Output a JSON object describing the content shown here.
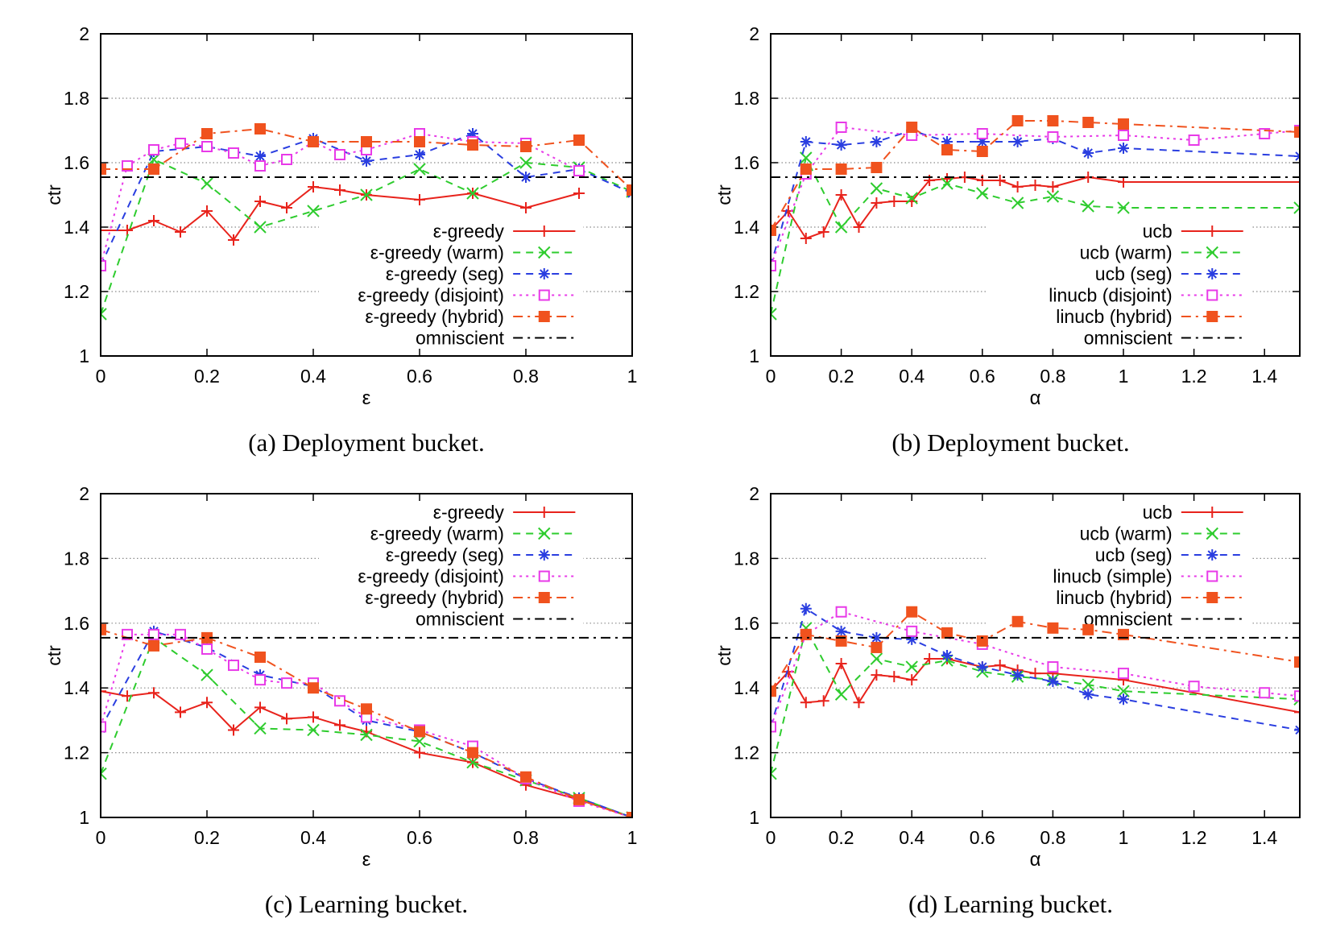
{
  "chart_data": [
    {
      "type": "line",
      "caption": "(a) Deployment bucket.",
      "xlabel": "ε",
      "ylabel": "ctr",
      "xlim": [
        0,
        1
      ],
      "ylim": [
        1,
        2
      ],
      "xticks": [
        "0",
        "0.2",
        "0.4",
        "0.6",
        "0.8",
        "1"
      ],
      "yticks": [
        "1",
        "1.2",
        "1.4",
        "1.6",
        "1.8",
        "2"
      ],
      "grid": "horizontal dotted",
      "legend_position": "bottom-right",
      "series": [
        {
          "name": "ε-greedy",
          "color": "#e8231c",
          "dash": "solid",
          "marker": "plus",
          "x": [
            0,
            0.05,
            0.1,
            0.15,
            0.2,
            0.25,
            0.3,
            0.35,
            0.4,
            0.45,
            0.5,
            0.6,
            0.7,
            0.8,
            0.9
          ],
          "y": [
            1.39,
            1.39,
            1.42,
            1.385,
            1.45,
            1.36,
            1.48,
            1.46,
            1.525,
            1.515,
            1.5,
            1.485,
            1.505,
            1.46,
            1.505
          ]
        },
        {
          "name": "ε-greedy (warm)",
          "color": "#2ecc2e",
          "dash": "dashed",
          "marker": "x",
          "x": [
            0,
            0.1,
            0.2,
            0.3,
            0.4,
            0.5,
            0.6,
            0.7,
            0.8,
            0.9,
            1
          ],
          "y": [
            1.13,
            1.61,
            1.535,
            1.4,
            1.45,
            1.5,
            1.58,
            1.505,
            1.6,
            1.585,
            1.51
          ]
        },
        {
          "name": "ε-greedy (seg)",
          "color": "#2a3ee0",
          "dash": "dashed",
          "marker": "asterisk",
          "x": [
            0,
            0.1,
            0.2,
            0.3,
            0.4,
            0.5,
            0.6,
            0.7,
            0.8,
            0.9,
            1
          ],
          "y": [
            1.28,
            1.635,
            1.65,
            1.62,
            1.675,
            1.605,
            1.625,
            1.69,
            1.555,
            1.58,
            1.505
          ]
        },
        {
          "name": "ε-greedy (disjoint)",
          "color": "#e83ae8",
          "dash": "dotted",
          "marker": "square-open",
          "x": [
            0,
            0.05,
            0.1,
            0.15,
            0.2,
            0.25,
            0.3,
            0.35,
            0.4,
            0.45,
            0.5,
            0.6,
            0.7,
            0.8,
            0.9
          ],
          "y": [
            1.28,
            1.59,
            1.64,
            1.66,
            1.65,
            1.63,
            1.59,
            1.61,
            1.665,
            1.625,
            1.64,
            1.69,
            1.665,
            1.66,
            1.575
          ]
        },
        {
          "name": "ε-greedy (hybrid)",
          "color": "#f0521e",
          "dash": "dashdot",
          "marker": "square-filled",
          "x": [
            0,
            0.1,
            0.2,
            0.3,
            0.4,
            0.5,
            0.6,
            0.7,
            0.8,
            0.9,
            1
          ],
          "y": [
            1.58,
            1.58,
            1.69,
            1.705,
            1.665,
            1.665,
            1.665,
            1.655,
            1.65,
            1.67,
            1.515
          ]
        },
        {
          "name": "omniscient",
          "color": "#000000",
          "dash": "dashdot",
          "marker": "none",
          "x": [
            0,
            1
          ],
          "y": [
            1.555,
            1.555
          ]
        }
      ]
    },
    {
      "type": "line",
      "caption": "(b) Deployment bucket.",
      "xlabel": "α",
      "ylabel": "ctr",
      "xlim": [
        0,
        1.5
      ],
      "ylim": [
        1,
        2
      ],
      "xticks": [
        "0",
        "0.2",
        "0.4",
        "0.6",
        "0.8",
        "1",
        "1.2",
        "1.4"
      ],
      "yticks": [
        "1",
        "1.2",
        "1.4",
        "1.6",
        "1.8",
        "2"
      ],
      "grid": "horizontal dotted",
      "legend_position": "bottom-right",
      "series": [
        {
          "name": "ucb",
          "color": "#e8231c",
          "dash": "solid",
          "marker": "plus",
          "x": [
            0,
            0.05,
            0.1,
            0.15,
            0.2,
            0.25,
            0.3,
            0.35,
            0.4,
            0.45,
            0.5,
            0.55,
            0.6,
            0.65,
            0.7,
            0.75,
            0.8,
            0.9,
            1,
            1.5
          ],
          "y": [
            1.39,
            1.45,
            1.365,
            1.385,
            1.5,
            1.4,
            1.475,
            1.48,
            1.48,
            1.545,
            1.55,
            1.555,
            1.545,
            1.545,
            1.525,
            1.53,
            1.525,
            1.555,
            1.54,
            1.54
          ]
        },
        {
          "name": "ucb (warm)",
          "color": "#2ecc2e",
          "dash": "dashed",
          "marker": "x",
          "x": [
            0,
            0.1,
            0.2,
            0.3,
            0.4,
            0.5,
            0.6,
            0.7,
            0.8,
            0.9,
            1,
            1.5
          ],
          "y": [
            1.13,
            1.615,
            1.4,
            1.52,
            1.49,
            1.535,
            1.505,
            1.475,
            1.495,
            1.465,
            1.46,
            1.46
          ]
        },
        {
          "name": "ucb (seg)",
          "color": "#2a3ee0",
          "dash": "dashed",
          "marker": "asterisk",
          "x": [
            0,
            0.1,
            0.2,
            0.3,
            0.4,
            0.5,
            0.6,
            0.7,
            0.8,
            0.9,
            1,
            1.5
          ],
          "y": [
            1.28,
            1.665,
            1.655,
            1.665,
            1.7,
            1.665,
            1.665,
            1.665,
            1.675,
            1.63,
            1.645,
            1.62
          ]
        },
        {
          "name": "linucb (disjoint)",
          "color": "#e83ae8",
          "dash": "dotted",
          "marker": "square-open",
          "x": [
            0,
            0.1,
            0.2,
            0.4,
            0.6,
            0.8,
            1,
            1.2,
            1.4,
            1.5
          ],
          "y": [
            1.28,
            1.565,
            1.71,
            1.685,
            1.69,
            1.68,
            1.685,
            1.67,
            1.69,
            1.7
          ]
        },
        {
          "name": "linucb (hybrid)",
          "color": "#f0521e",
          "dash": "dashdot",
          "marker": "square-filled",
          "x": [
            0,
            0.1,
            0.2,
            0.3,
            0.4,
            0.5,
            0.6,
            0.7,
            0.8,
            0.9,
            1,
            1.5
          ],
          "y": [
            1.39,
            1.58,
            1.58,
            1.585,
            1.71,
            1.64,
            1.635,
            1.73,
            1.73,
            1.725,
            1.72,
            1.695
          ]
        },
        {
          "name": "omniscient",
          "color": "#000000",
          "dash": "dashdot",
          "marker": "none",
          "x": [
            0,
            1.5
          ],
          "y": [
            1.555,
            1.555
          ]
        }
      ]
    },
    {
      "type": "line",
      "caption": "(c) Learning bucket.",
      "xlabel": "ε",
      "ylabel": "ctr",
      "xlim": [
        0,
        1
      ],
      "ylim": [
        1,
        2
      ],
      "xticks": [
        "0",
        "0.2",
        "0.4",
        "0.6",
        "0.8",
        "1"
      ],
      "yticks": [
        "1",
        "1.2",
        "1.4",
        "1.6",
        "1.8",
        "2"
      ],
      "grid": "horizontal dotted",
      "legend_position": "top-right",
      "series": [
        {
          "name": "ε-greedy",
          "color": "#e8231c",
          "dash": "solid",
          "marker": "plus",
          "x": [
            0,
            0.05,
            0.1,
            0.15,
            0.2,
            0.25,
            0.3,
            0.35,
            0.4,
            0.45,
            0.5,
            0.6,
            0.7,
            0.8,
            0.9,
            1
          ],
          "y": [
            1.39,
            1.375,
            1.385,
            1.325,
            1.355,
            1.27,
            1.34,
            1.305,
            1.31,
            1.285,
            1.265,
            1.2,
            1.17,
            1.1,
            1.055,
            1.0
          ]
        },
        {
          "name": "ε-greedy (warm)",
          "color": "#2ecc2e",
          "dash": "dashed",
          "marker": "x",
          "x": [
            0,
            0.1,
            0.2,
            0.3,
            0.4,
            0.5,
            0.6,
            0.7,
            0.8,
            0.9,
            1
          ],
          "y": [
            1.135,
            1.555,
            1.44,
            1.275,
            1.27,
            1.255,
            1.235,
            1.17,
            1.115,
            1.06,
            1.0
          ]
        },
        {
          "name": "ε-greedy (seg)",
          "color": "#2a3ee0",
          "dash": "dashed",
          "marker": "asterisk",
          "x": [
            0,
            0.1,
            0.2,
            0.3,
            0.4,
            0.5,
            0.6,
            0.7,
            0.8,
            0.9,
            1
          ],
          "y": [
            1.275,
            1.575,
            1.525,
            1.44,
            1.405,
            1.3,
            1.265,
            1.2,
            1.12,
            1.06,
            1.0
          ]
        },
        {
          "name": "ε-greedy (disjoint)",
          "color": "#e83ae8",
          "dash": "dotted",
          "marker": "square-open",
          "x": [
            0,
            0.05,
            0.1,
            0.15,
            0.2,
            0.25,
            0.3,
            0.35,
            0.4,
            0.45,
            0.5,
            0.6,
            0.7,
            0.8,
            0.9,
            1
          ],
          "y": [
            1.28,
            1.565,
            1.565,
            1.565,
            1.52,
            1.47,
            1.425,
            1.415,
            1.415,
            1.36,
            1.31,
            1.27,
            1.22,
            1.12,
            1.05,
            1.0
          ]
        },
        {
          "name": "ε-greedy (hybrid)",
          "color": "#f0521e",
          "dash": "dashdot",
          "marker": "square-filled",
          "x": [
            0,
            0.1,
            0.2,
            0.3,
            0.4,
            0.5,
            0.6,
            0.7,
            0.8,
            0.9,
            1
          ],
          "y": [
            1.58,
            1.53,
            1.555,
            1.495,
            1.4,
            1.335,
            1.265,
            1.2,
            1.125,
            1.055,
            1.0
          ]
        },
        {
          "name": "omniscient",
          "color": "#000000",
          "dash": "dashdot",
          "marker": "none",
          "x": [
            0,
            1
          ],
          "y": [
            1.555,
            1.555
          ]
        }
      ]
    },
    {
      "type": "line",
      "caption": "(d) Learning bucket.",
      "xlabel": "α",
      "ylabel": "ctr",
      "xlim": [
        0,
        1.5
      ],
      "ylim": [
        1,
        2
      ],
      "xticks": [
        "0",
        "0.2",
        "0.4",
        "0.6",
        "0.8",
        "1",
        "1.2",
        "1.4"
      ],
      "yticks": [
        "1",
        "1.2",
        "1.4",
        "1.6",
        "1.8",
        "2"
      ],
      "grid": "horizontal dotted",
      "legend_position": "top-right",
      "series": [
        {
          "name": "ucb",
          "color": "#e8231c",
          "dash": "solid",
          "marker": "plus",
          "x": [
            0,
            0.05,
            0.1,
            0.15,
            0.2,
            0.25,
            0.3,
            0.35,
            0.4,
            0.45,
            0.5,
            0.6,
            0.65,
            0.7,
            0.75,
            0.8,
            1,
            1.5
          ],
          "y": [
            1.39,
            1.45,
            1.355,
            1.36,
            1.475,
            1.355,
            1.44,
            1.435,
            1.425,
            1.49,
            1.49,
            1.465,
            1.47,
            1.455,
            1.445,
            1.445,
            1.425,
            1.325
          ]
        },
        {
          "name": "ucb (warm)",
          "color": "#2ecc2e",
          "dash": "dashed",
          "marker": "x",
          "x": [
            0,
            0.1,
            0.2,
            0.3,
            0.4,
            0.5,
            0.6,
            0.7,
            0.8,
            0.9,
            1,
            1.5
          ],
          "y": [
            1.135,
            1.585,
            1.38,
            1.49,
            1.465,
            1.485,
            1.45,
            1.435,
            1.425,
            1.41,
            1.39,
            1.365
          ]
        },
        {
          "name": "ucb (seg)",
          "color": "#2a3ee0",
          "dash": "dashed",
          "marker": "asterisk",
          "x": [
            0,
            0.1,
            0.2,
            0.3,
            0.4,
            0.5,
            0.6,
            0.7,
            0.8,
            0.9,
            1,
            1.5
          ],
          "y": [
            1.28,
            1.645,
            1.575,
            1.555,
            1.55,
            1.5,
            1.465,
            1.44,
            1.42,
            1.38,
            1.365,
            1.27
          ]
        },
        {
          "name": "linucb (simple)",
          "color": "#e83ae8",
          "dash": "dotted",
          "marker": "square-open",
          "x": [
            0,
            0.1,
            0.2,
            0.4,
            0.6,
            0.8,
            1,
            1.2,
            1.4,
            1.5
          ],
          "y": [
            1.28,
            1.565,
            1.635,
            1.575,
            1.535,
            1.465,
            1.445,
            1.405,
            1.385,
            1.375
          ]
        },
        {
          "name": "linucb (hybrid)",
          "color": "#f0521e",
          "dash": "dashdot",
          "marker": "square-filled",
          "x": [
            0,
            0.1,
            0.2,
            0.3,
            0.4,
            0.5,
            0.6,
            0.7,
            0.8,
            0.9,
            1,
            1.5
          ],
          "y": [
            1.39,
            1.565,
            1.545,
            1.525,
            1.635,
            1.57,
            1.545,
            1.605,
            1.585,
            1.58,
            1.565,
            1.48
          ]
        },
        {
          "name": "omniscient",
          "color": "#000000",
          "dash": "dashdot",
          "marker": "none",
          "x": [
            0,
            1.5
          ],
          "y": [
            1.555,
            1.555
          ]
        }
      ]
    }
  ]
}
